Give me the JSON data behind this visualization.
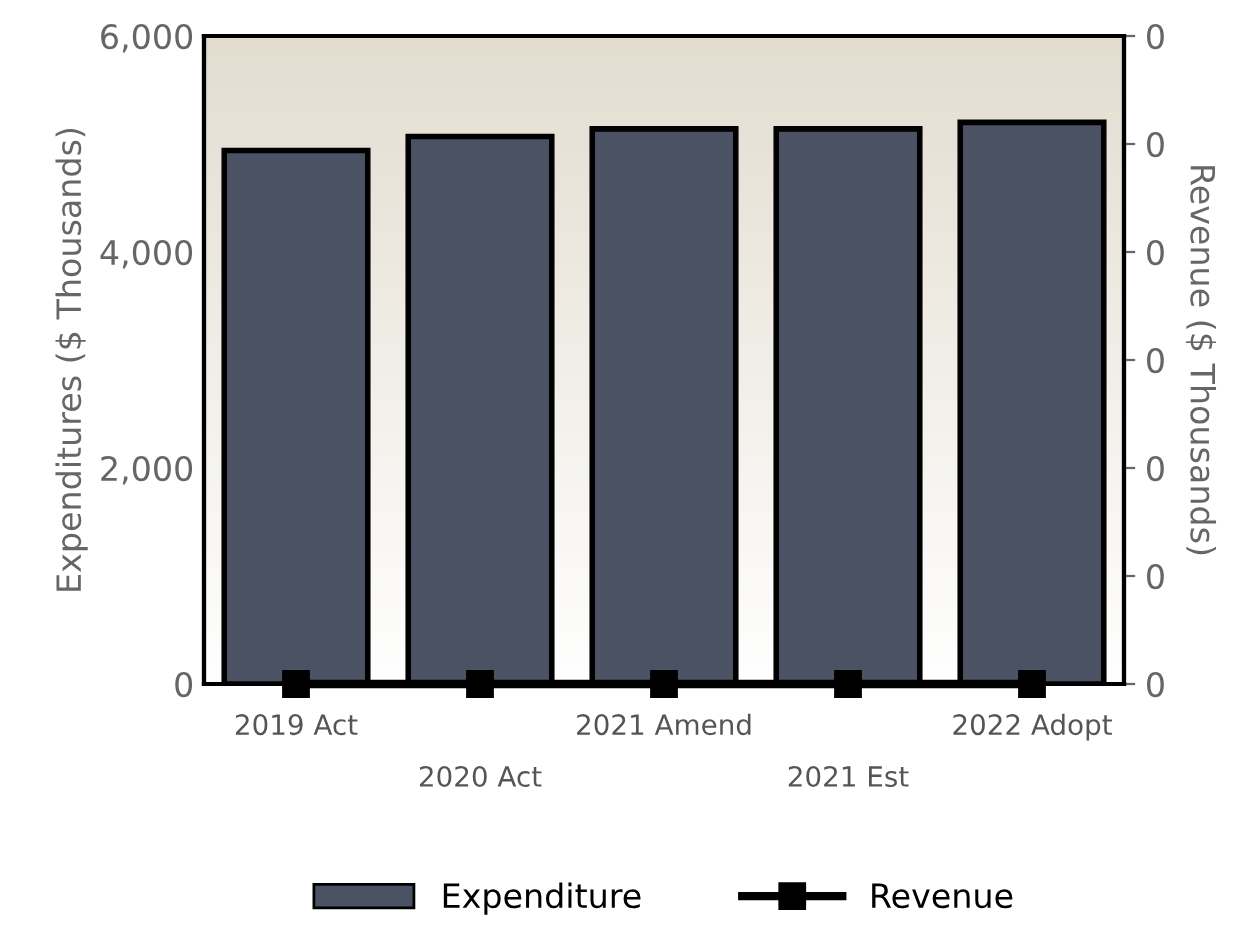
{
  "chart_data": {
    "type": "bar",
    "categories": [
      "2019 Act",
      "2020 Act",
      "2021 Amend",
      "2021 Est",
      "2022 Adopt"
    ],
    "ylabel": "Expenditures ($ Thousands)",
    "y2label": "Revenue ($ Thousands)",
    "series": [
      {
        "name": "Expenditure",
        "color": "#4a5263",
        "values": [
          4940,
          5070,
          5140,
          5140,
          5200
        ]
      },
      {
        "name": "Revenue",
        "type": "line",
        "axis": "y2",
        "color": "#000000",
        "marker": "square",
        "values": [
          0,
          0,
          0,
          0,
          0
        ]
      }
    ],
    "ylim": [
      0,
      6000
    ],
    "yticks": [
      0,
      {
        "value": 2000,
        "label": "2,000"
      },
      {
        "value": 4000,
        "label": "4,000"
      },
      {
        "value": 6000,
        "label": "6,000"
      }
    ],
    "y2lim": [
      0,
      0.006
    ],
    "y2ticks": [
      0,
      {
        "value": 0.001,
        "label": "0"
      },
      {
        "value": 0.002,
        "label": "0"
      },
      {
        "value": 0.003,
        "label": "0"
      },
      {
        "value": 0.004,
        "label": "0"
      },
      {
        "value": 0.005,
        "label": "0"
      },
      {
        "value": 0.006,
        "label": "0"
      }
    ],
    "grid": false,
    "legend": "bottom"
  }
}
